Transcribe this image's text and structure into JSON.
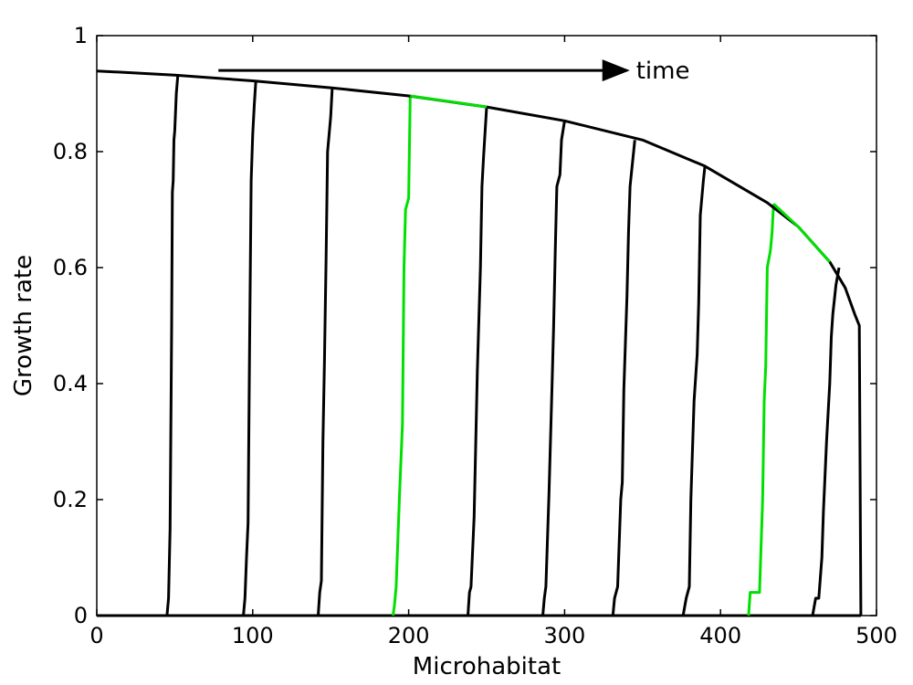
{
  "chart_data": {
    "type": "line",
    "title": "",
    "xlabel": "Microhabitat",
    "ylabel": "Growth rate",
    "xlim": [
      0,
      500
    ],
    "ylim": [
      0,
      1
    ],
    "x_ticks": [
      "0",
      "100",
      "200",
      "300",
      "400",
      "500"
    ],
    "y_ticks": [
      "0",
      "0.2",
      "0.4",
      "0.6",
      "0.8",
      "1"
    ],
    "grid": false,
    "legend": "none",
    "annotation": {
      "text": "time",
      "arrow_from": [
        78,
        0.94
      ],
      "arrow_to": [
        340,
        0.94
      ]
    },
    "colors": {
      "black": "#000000",
      "green": "#00e000"
    },
    "envelope": {
      "color": "black",
      "x": [
        0,
        50,
        100,
        150,
        200,
        250,
        300,
        350,
        390,
        430,
        450,
        470,
        480,
        486,
        489,
        490
      ],
      "y": [
        0.939,
        0.932,
        0.922,
        0.91,
        0.896,
        0.877,
        0.853,
        0.82,
        0.775,
        0.712,
        0.67,
        0.61,
        0.565,
        0.52,
        0.5,
        0.0
      ]
    },
    "series": [
      {
        "color": "black",
        "x": [
          45,
          46,
          47,
          48,
          48.5,
          49,
          49.5,
          50,
          51,
          52
        ],
        "y": [
          0.0,
          0.03,
          0.15,
          0.5,
          0.73,
          0.75,
          0.82,
          0.836,
          0.9,
          0.932
        ]
      },
      {
        "color": "black",
        "x": [
          94,
          95,
          96,
          97,
          98,
          99,
          100,
          101,
          102
        ],
        "y": [
          0.0,
          0.03,
          0.1,
          0.16,
          0.47,
          0.75,
          0.83,
          0.88,
          0.922
        ]
      },
      {
        "color": "black",
        "x": [
          142,
          143,
          144,
          145,
          146,
          147,
          148,
          150,
          151
        ],
        "y": [
          0.0,
          0.04,
          0.06,
          0.3,
          0.44,
          0.61,
          0.8,
          0.86,
          0.91
        ]
      },
      {
        "color": "green",
        "x": [
          190,
          191,
          192,
          194,
          196,
          197,
          198,
          200,
          201
        ],
        "y": [
          0.0,
          0.02,
          0.05,
          0.2,
          0.33,
          0.6,
          0.7,
          0.72,
          0.896
        ],
        "overlay": {
          "x": [
            201,
            250
          ],
          "y": [
            0.896,
            0.877
          ]
        }
      },
      {
        "color": "black",
        "x": [
          238,
          239,
          240,
          242,
          244,
          246,
          247,
          248,
          250
        ],
        "y": [
          0.0,
          0.04,
          0.05,
          0.17,
          0.42,
          0.6,
          0.74,
          0.79,
          0.877
        ]
      },
      {
        "color": "black",
        "x": [
          286,
          287,
          288,
          290,
          292,
          293,
          294,
          295,
          297,
          298,
          300
        ],
        "y": [
          0.0,
          0.03,
          0.05,
          0.21,
          0.4,
          0.5,
          0.63,
          0.74,
          0.76,
          0.82,
          0.853
        ]
      },
      {
        "color": "black",
        "x": [
          331,
          332,
          334,
          336,
          337,
          338,
          340,
          341,
          342,
          345
        ],
        "y": [
          0.0,
          0.03,
          0.05,
          0.2,
          0.23,
          0.39,
          0.55,
          0.66,
          0.74,
          0.82
        ]
      },
      {
        "color": "black",
        "x": [
          376,
          378,
          380,
          381,
          383,
          385,
          386,
          387,
          389,
          390
        ],
        "y": [
          0.0,
          0.03,
          0.05,
          0.2,
          0.37,
          0.45,
          0.54,
          0.69,
          0.75,
          0.775
        ]
      },
      {
        "color": "green",
        "x": [
          418,
          419,
          425,
          427,
          428,
          429,
          430,
          432,
          433,
          434
        ],
        "y": [
          0.0,
          0.04,
          0.04,
          0.2,
          0.37,
          0.43,
          0.6,
          0.63,
          0.66,
          0.71
        ],
        "overlay": {
          "x": [
            434,
            450,
            470
          ],
          "y": [
            0.71,
            0.67,
            0.61
          ]
        }
      },
      {
        "color": "black",
        "x": [
          459,
          461,
          463,
          465,
          466,
          468,
          470,
          471,
          472,
          474,
          476
        ],
        "y": [
          0.0,
          0.03,
          0.03,
          0.1,
          0.18,
          0.3,
          0.4,
          0.48,
          0.52,
          0.57,
          0.6
        ]
      }
    ]
  }
}
